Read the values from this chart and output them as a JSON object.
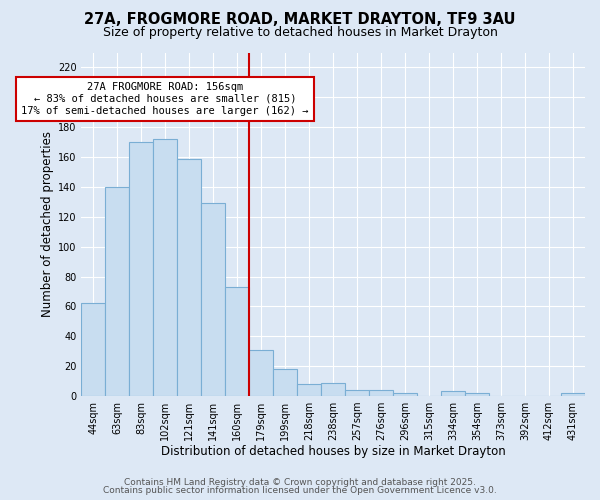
{
  "title_line1": "27A, FROGMORE ROAD, MARKET DRAYTON, TF9 3AU",
  "title_line2": "Size of property relative to detached houses in Market Drayton",
  "xlabel": "Distribution of detached houses by size in Market Drayton",
  "ylabel": "Number of detached properties",
  "bar_labels": [
    "44sqm",
    "63sqm",
    "83sqm",
    "102sqm",
    "121sqm",
    "141sqm",
    "160sqm",
    "179sqm",
    "199sqm",
    "218sqm",
    "238sqm",
    "257sqm",
    "276sqm",
    "296sqm",
    "315sqm",
    "334sqm",
    "354sqm",
    "373sqm",
    "392sqm",
    "412sqm",
    "431sqm"
  ],
  "bar_values": [
    62,
    140,
    170,
    172,
    159,
    129,
    73,
    31,
    18,
    8,
    9,
    4,
    4,
    2,
    0,
    3,
    2,
    0,
    0,
    0,
    2
  ],
  "bar_color": "#c8ddf0",
  "bar_edge_color": "#7aaed4",
  "vline_x_index": 6,
  "vline_color": "#cc0000",
  "annotation_line1": "27A FROGMORE ROAD: 156sqm",
  "annotation_line2": "← 83% of detached houses are smaller (815)",
  "annotation_line3": "17% of semi-detached houses are larger (162) →",
  "annotation_box_edge": "#cc0000",
  "annotation_box_face": "white",
  "ylim": [
    0,
    230
  ],
  "yticks": [
    0,
    20,
    40,
    60,
    80,
    100,
    120,
    140,
    160,
    180,
    200,
    220
  ],
  "background_color": "#dde8f5",
  "plot_background": "#dde8f5",
  "grid_color": "#ffffff",
  "footer_line1": "Contains HM Land Registry data © Crown copyright and database right 2025.",
  "footer_line2": "Contains public sector information licensed under the Open Government Licence v3.0.",
  "title_fontsize": 10.5,
  "subtitle_fontsize": 9,
  "xlabel_fontsize": 8.5,
  "ylabel_fontsize": 8.5,
  "tick_fontsize": 7,
  "footer_fontsize": 6.5,
  "annotation_fontsize": 7.5
}
